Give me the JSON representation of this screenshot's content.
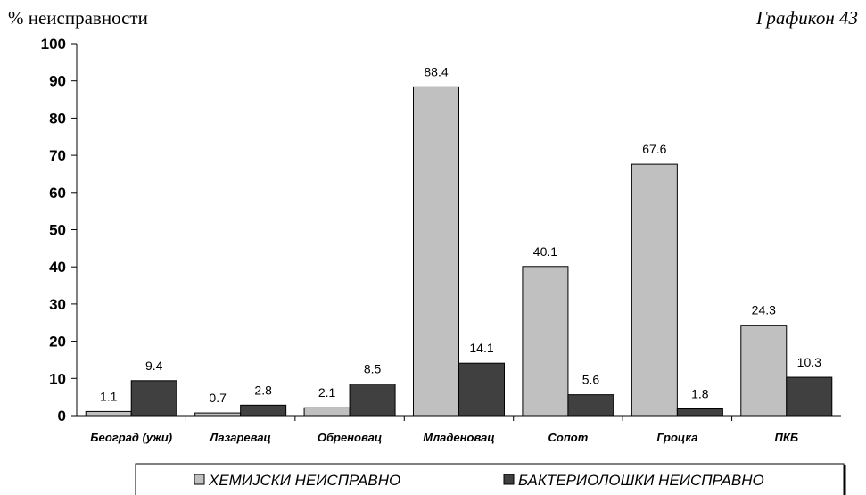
{
  "chart_data": {
    "type": "bar",
    "title": "Графикон 43",
    "ylabel": "% неисправности",
    "xlabel": "",
    "ylim": [
      0,
      100
    ],
    "yticks": [
      0,
      10,
      20,
      30,
      40,
      50,
      60,
      70,
      80,
      90,
      100
    ],
    "grid": false,
    "legend_position": "bottom",
    "categories": [
      "Београд (ужи)",
      "Лазаревац",
      "Обреновац",
      "Младеновац",
      "Сопот",
      "Гроцка",
      "ПКБ"
    ],
    "series": [
      {
        "name": "ХЕМИЈСКИ НЕИСПРАВНО",
        "color": "#c0c0c0",
        "values": [
          1.1,
          0.7,
          2.1,
          88.4,
          40.1,
          67.6,
          24.3
        ]
      },
      {
        "name": "БАКТЕРИОЛОШКИ НЕИСПРАВНО",
        "color": "#404040",
        "values": [
          9.4,
          2.8,
          8.5,
          14.1,
          5.6,
          1.8,
          10.3
        ]
      }
    ]
  }
}
